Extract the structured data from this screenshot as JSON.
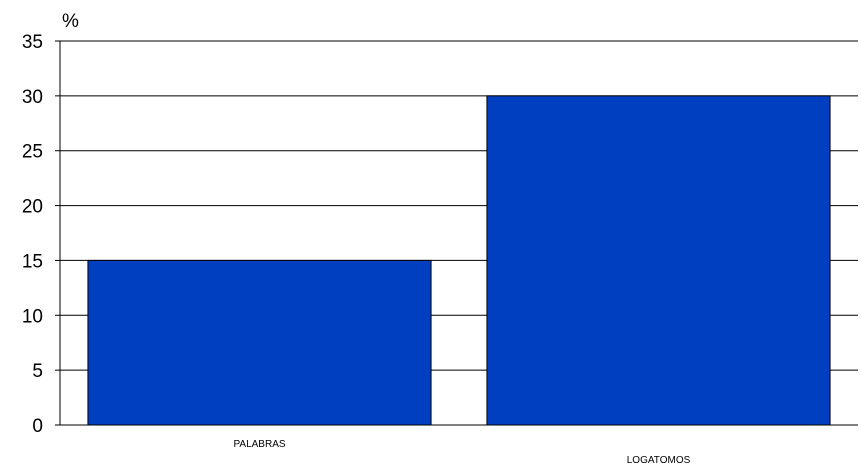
{
  "chart_data": {
    "type": "bar",
    "categories": [
      "PALABRAS",
      "LOGATOMOS"
    ],
    "values": [
      15,
      30
    ],
    "ylabel": "%",
    "ylim": [
      0,
      35
    ],
    "yticks": [
      0,
      5,
      10,
      15,
      20,
      25,
      30,
      35
    ],
    "grid": true,
    "legend": "none",
    "colors": {
      "bar": "#0040C0",
      "bar_outline": "#000000",
      "grid": "#000000",
      "background": "#FFFFFF"
    }
  }
}
